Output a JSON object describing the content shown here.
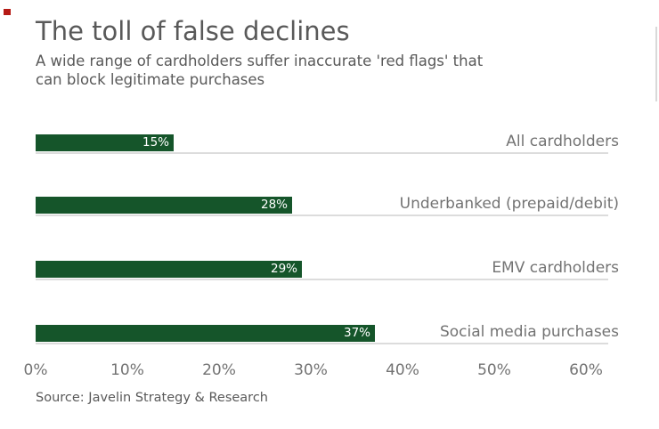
{
  "header": {
    "title": "The toll of false declines",
    "subtitle_line1": "A wide range of cardholders suffer inaccurate 'red flags' that",
    "subtitle_line2": "can block legitimate purchases"
  },
  "chart_data": {
    "type": "bar",
    "orientation": "horizontal",
    "title": "The toll of false declines",
    "subtitle": "A wide range of cardholders suffer inaccurate 'red flags' that can block legitimate purchases",
    "categories": [
      "All cardholders",
      "Underbanked (prepaid/debit)",
      "EMV cardholders",
      "Social media purchases"
    ],
    "values": [
      15,
      28,
      29,
      37
    ],
    "value_labels": [
      "15%",
      "28%",
      "29%",
      "37%"
    ],
    "x_ticks": [
      "0%",
      "10%",
      "20%",
      "30%",
      "40%",
      "50%",
      "60%"
    ],
    "x_tick_values": [
      0,
      10,
      20,
      30,
      40,
      50,
      60
    ],
    "xlim": [
      0,
      60
    ],
    "grid": false,
    "legend": "none",
    "bar_color": "#15552a",
    "track_color": "#dcdcdc",
    "value_label_color": "#ffffff",
    "text_color": "#595959",
    "label_color": "#737373",
    "brand_mark_color": "#b51a15"
  },
  "footer": {
    "source": "Source: Javelin Strategy & Research"
  }
}
